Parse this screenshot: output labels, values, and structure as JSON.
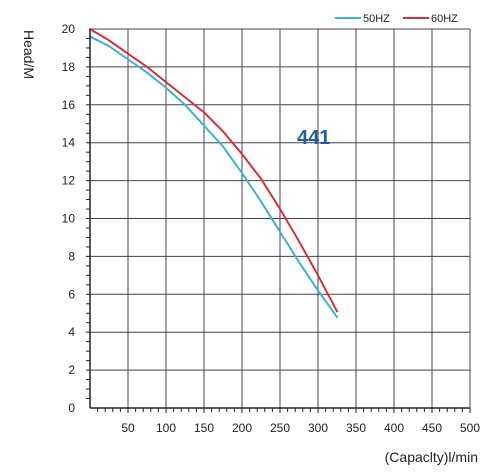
{
  "chart_data": {
    "type": "line",
    "xlabel": "(Capaclty)l/min",
    "ylabel": "Head/M",
    "xlim": [
      0,
      500
    ],
    "ylim": [
      0,
      20
    ],
    "x_ticks": [
      50,
      100,
      150,
      200,
      250,
      300,
      350,
      400,
      450,
      500
    ],
    "y_ticks": [
      0,
      2,
      4,
      6,
      8,
      10,
      12,
      14,
      16,
      18,
      20
    ],
    "grid": true,
    "legend_position": "top-right",
    "annotation": {
      "text": "441",
      "color": "#1f5fa0",
      "x": 275,
      "y": 14.3
    },
    "series": [
      {
        "name": "50HZ",
        "color": "#3bb3d9",
        "x": [
          0,
          25,
          50,
          75,
          100,
          125,
          150,
          175,
          200,
          225,
          250,
          275,
          300,
          325
        ],
        "y": [
          19.6,
          19.1,
          18.4,
          17.7,
          16.9,
          16.0,
          14.9,
          13.8,
          12.4,
          10.9,
          9.3,
          7.7,
          6.2,
          4.8
        ]
      },
      {
        "name": "60HZ",
        "color": "#d1333b",
        "x": [
          0,
          25,
          50,
          75,
          100,
          125,
          150,
          175,
          200,
          225,
          250,
          275,
          300,
          325
        ],
        "y": [
          20.0,
          19.4,
          18.7,
          18.0,
          17.2,
          16.4,
          15.6,
          14.6,
          13.4,
          12.1,
          10.5,
          8.8,
          7.0,
          5.1
        ]
      }
    ]
  }
}
